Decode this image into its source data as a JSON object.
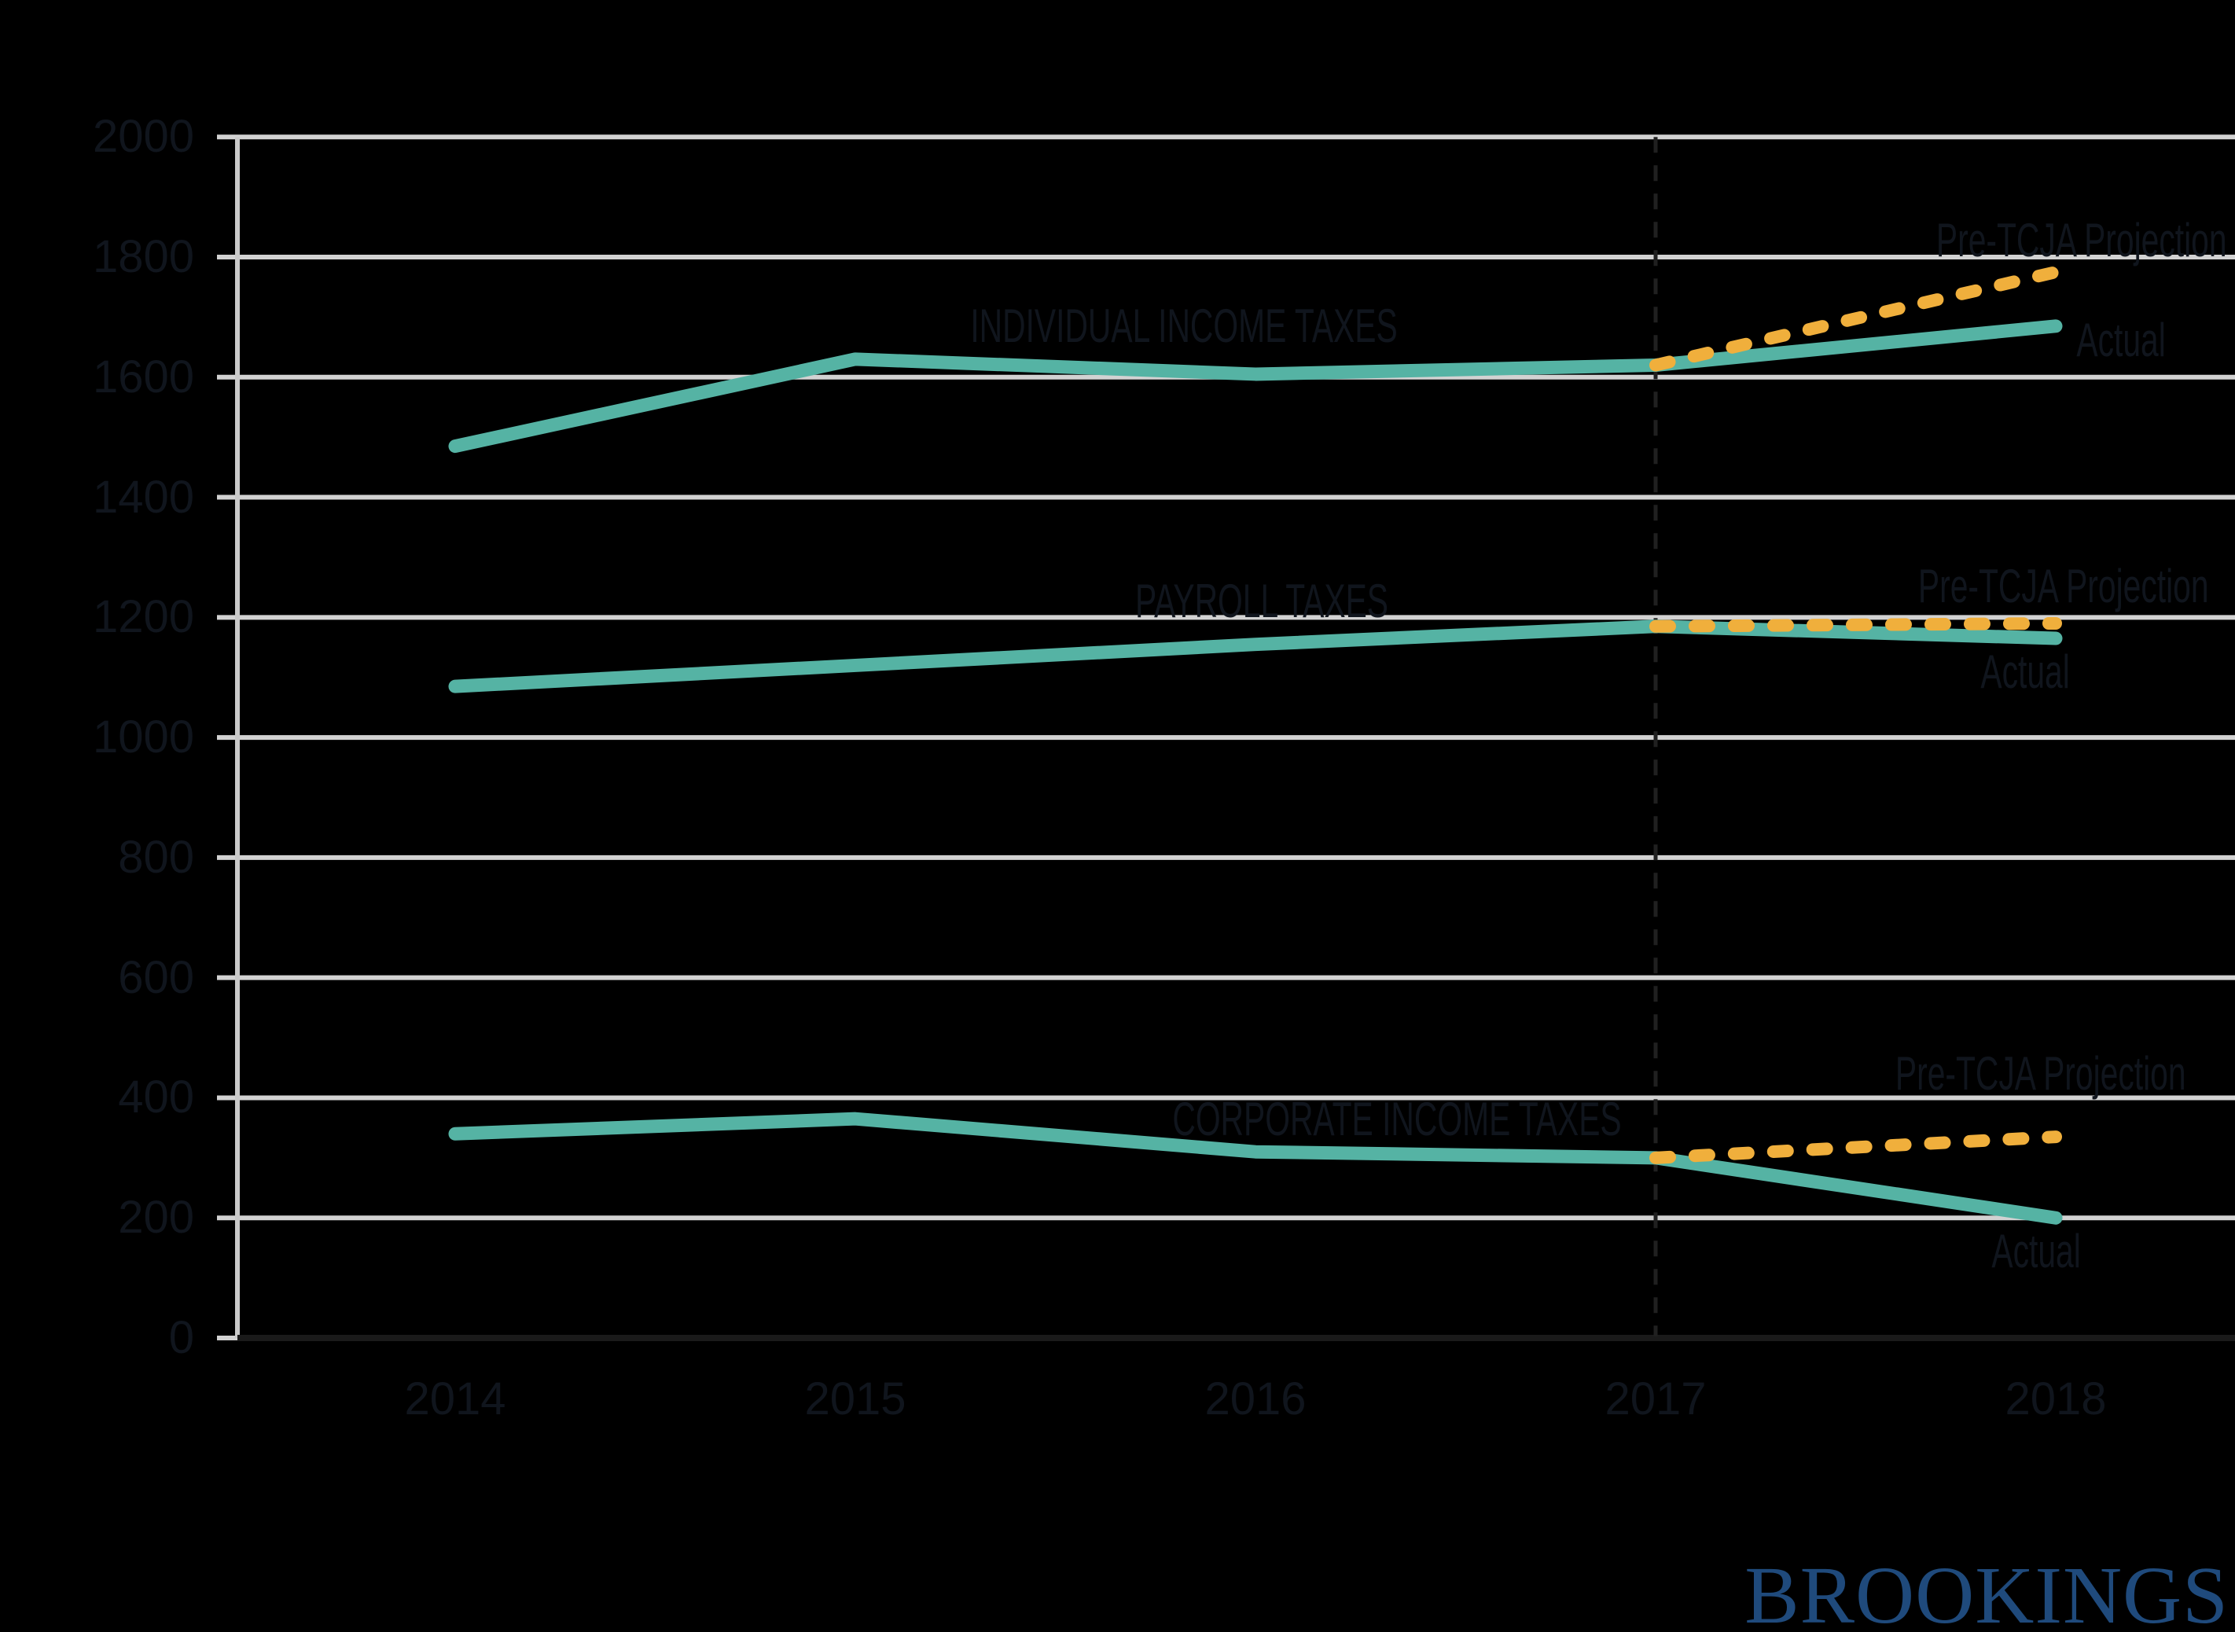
{
  "chart_data": {
    "type": "line",
    "title": "",
    "xlabel": "",
    "ylabel": "",
    "x": [
      2014,
      2015,
      2016,
      2017,
      2018
    ],
    "ylim": [
      0,
      2000
    ],
    "grid": true,
    "projection_split_x": 2017,
    "ytick_labels": [
      2000,
      1800,
      1600,
      1400,
      1200,
      1000,
      800,
      600,
      400,
      200,
      0
    ],
    "xtick_labels": [
      2014,
      2015,
      2016,
      2017,
      2018
    ],
    "series": [
      {
        "id": "individual-actual",
        "name": "Individual income taxes — Actual",
        "role": "actual",
        "color": "#55B3A4",
        "x": [
          2014,
          2015,
          2016,
          2017,
          2018
        ],
        "values": [
          1485,
          1630,
          1605,
          1620,
          1685
        ]
      },
      {
        "id": "individual-projection",
        "name": "Individual income taxes — Pre-TCJA Projection",
        "role": "projection",
        "color": "#F0AF3C",
        "x": [
          2017,
          2018
        ],
        "values": [
          1620,
          1775
        ]
      },
      {
        "id": "payroll-actual",
        "name": "Payroll taxes — Actual",
        "role": "actual",
        "color": "#55B3A4",
        "x": [
          2014,
          2015,
          2016,
          2017,
          2018
        ],
        "values": [
          1085,
          1120,
          1155,
          1185,
          1165
        ]
      },
      {
        "id": "payroll-projection",
        "name": "Payroll taxes — Pre-TCJA Projection",
        "role": "projection",
        "color": "#F0AF3C",
        "x": [
          2017,
          2018
        ],
        "values": [
          1185,
          1190
        ]
      },
      {
        "id": "corporate-actual",
        "name": "Corporate income taxes — Actual",
        "role": "actual",
        "color": "#55B3A4",
        "x": [
          2014,
          2015,
          2016,
          2017,
          2018
        ],
        "values": [
          340,
          365,
          310,
          300,
          200
        ]
      },
      {
        "id": "corporate-projection",
        "name": "Corporate income taxes — Pre-TCJA Projection",
        "role": "projection",
        "color": "#F0AF3C",
        "x": [
          2017,
          2018
        ],
        "values": [
          300,
          335
        ]
      }
    ],
    "annotations": {
      "individual_label": "INDIVIDUAL INCOME TAXES",
      "individual_projection": "Pre-TCJA Projection",
      "individual_actual": "Actual",
      "payroll_label": "PAYROLL TAXES",
      "payroll_projection": "Pre-TCJA Projection",
      "payroll_actual": "Actual",
      "corporate_label": "CORPORATE INCOME TAXES",
      "corporate_projection": "Pre-TCJA Projection",
      "corporate_actual": "Actual"
    },
    "colors": {
      "actual_line": "#55B3A4",
      "projection_line": "#F0AF3C",
      "gridline": "#D2D2D2",
      "y_axis_line": "#C9C9C9",
      "x_axis_line": "#1A1A1A",
      "divider_line": "#202020",
      "text": "#10151D",
      "background": "#000000"
    },
    "legend_position": "inline-annotations"
  },
  "logo": {
    "text": "BROOKINGS",
    "color": "#1F4A7C"
  }
}
